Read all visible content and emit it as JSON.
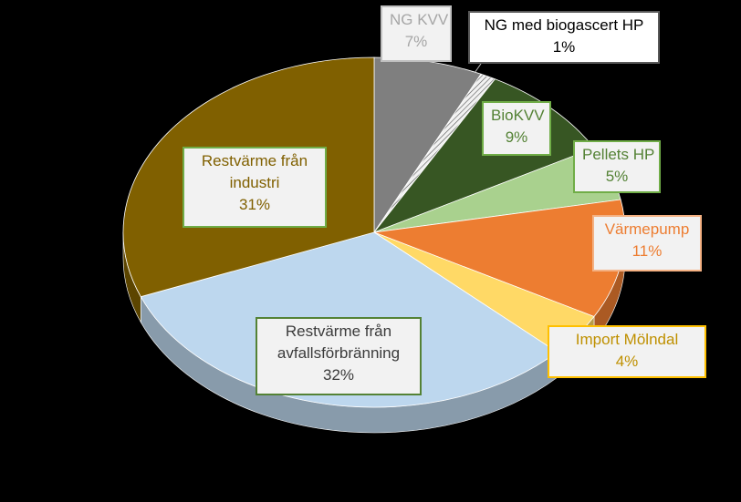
{
  "chart_data": {
    "type": "pie",
    "title": "",
    "slices": [
      {
        "key": "ngkvv",
        "label": "NG KVV",
        "pct_text": "7%",
        "value": 7,
        "color": "#7f7f7f",
        "label_color": "#a6a6a6",
        "border_color": "#bfbfbf"
      },
      {
        "key": "ngbio",
        "label": "NG med biogascert HP",
        "pct_text": "1%",
        "value": 1,
        "color": "#f2f2f2",
        "label_color": "#000000",
        "border_color": "#595959"
      },
      {
        "key": "biokvv",
        "label": "BioKVV",
        "pct_text": "9%",
        "value": 9,
        "color": "#375623",
        "label_color": "#548235",
        "border_color": "#70ad47"
      },
      {
        "key": "pellets",
        "label": "Pellets HP",
        "pct_text": "5%",
        "value": 5,
        "color": "#a9d18e",
        "label_color": "#548235",
        "border_color": "#70ad47"
      },
      {
        "key": "varmepump",
        "label": "Värmepump",
        "pct_text": "11%",
        "value": 11,
        "color": "#ed7d31",
        "label_color": "#ed7d31",
        "border_color": "#f4b183"
      },
      {
        "key": "import",
        "label": "Import Mölndal",
        "pct_text": "4%",
        "value": 4,
        "color": "#ffd966",
        "label_color": "#bf9000",
        "border_color": "#ffc000"
      },
      {
        "key": "avfall",
        "label": "Restvärme från avfallsförbränning",
        "label_lines": [
          "Restvärme från",
          "avfallsförbränning"
        ],
        "pct_text": "32%",
        "value": 32,
        "color": "#bdd7ee",
        "label_color": "#3b3b3b",
        "border_color": "#548235"
      },
      {
        "key": "industri",
        "label": "Restvärme från industri",
        "label_lines": [
          "Restvärme från",
          "industri"
        ],
        "pct_text": "31%",
        "value": 31,
        "color": "#806000",
        "label_color": "#806000",
        "border_color": "#70ad47"
      }
    ],
    "legend": "none",
    "style": "3d-exploded-pie"
  }
}
